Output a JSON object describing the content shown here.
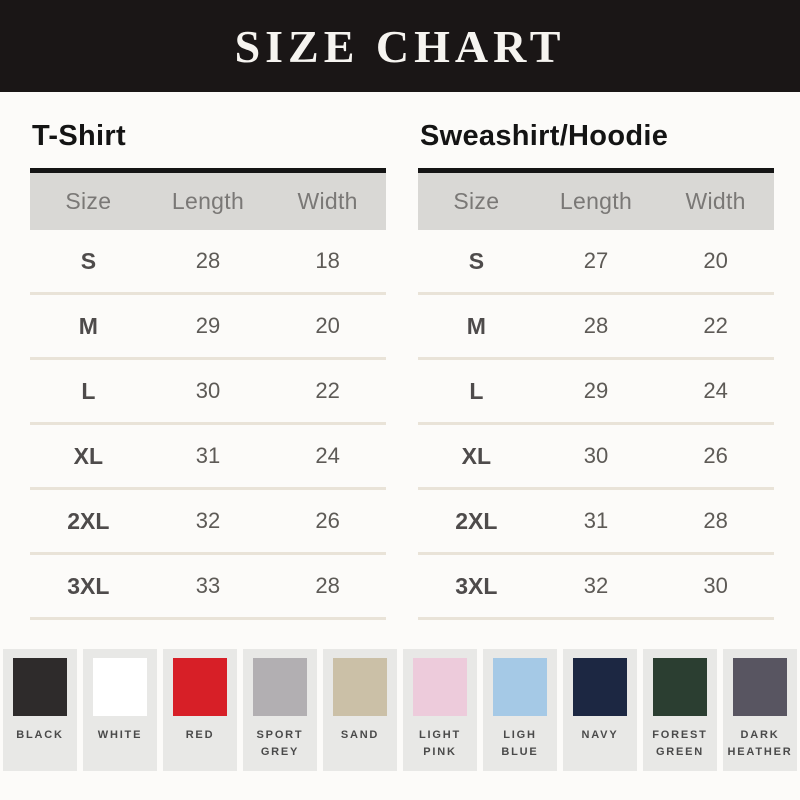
{
  "header": {
    "title": "SIZE CHART"
  },
  "tables": [
    {
      "title": "T-Shirt",
      "columns": [
        "Size",
        "Length",
        "Width"
      ],
      "rows": [
        [
          "S",
          "28",
          "18"
        ],
        [
          "M",
          "29",
          "20"
        ],
        [
          "L",
          "30",
          "22"
        ],
        [
          "XL",
          "31",
          "24"
        ],
        [
          "2XL",
          "32",
          "26"
        ],
        [
          "3XL",
          "33",
          "28"
        ]
      ]
    },
    {
      "title": "Sweashirt/Hoodie",
      "columns": [
        "Size",
        "Length",
        "Width"
      ],
      "rows": [
        [
          "S",
          "27",
          "20"
        ],
        [
          "M",
          "28",
          "22"
        ],
        [
          "L",
          "29",
          "24"
        ],
        [
          "XL",
          "30",
          "26"
        ],
        [
          "2XL",
          "31",
          "28"
        ],
        [
          "3XL",
          "32",
          "30"
        ]
      ]
    }
  ],
  "swatches": [
    {
      "label": "BLACK",
      "color": "#2e2b2b"
    },
    {
      "label": "WHITE",
      "color": "#ffffff"
    },
    {
      "label": "RED",
      "color": "#d71f27"
    },
    {
      "label": "SPORT GREY",
      "color": "#b2afb2"
    },
    {
      "label": "SAND",
      "color": "#cbc0a7"
    },
    {
      "label": "LIGHT PINK",
      "color": "#edcbdb"
    },
    {
      "label": "LIGH BLUE",
      "color": "#a5c9e6"
    },
    {
      "label": "NAVY",
      "color": "#1c2742"
    },
    {
      "label": "FOREST GREEN",
      "color": "#2b3e31"
    },
    {
      "label": "DARK HEATHER",
      "color": "#585561"
    }
  ],
  "colors": {
    "banner_bg": "#1a1616",
    "banner_text": "#f6f4f0",
    "table_top_border": "#151515",
    "table_header_bg": "#d9d8d5",
    "table_header_text": "#7a7876",
    "row_separator": "#e9e3d8",
    "size_text": "#4e4b4b",
    "value_text": "#5d5a56",
    "swatch_card_bg": "#e8e8e6",
    "swatch_label_text": "#4a4a4a",
    "page_bg": "#fcfbf9"
  },
  "chart_data": [
    {
      "type": "table",
      "title": "T-Shirt",
      "columns": [
        "Size",
        "Length",
        "Width"
      ],
      "rows": [
        [
          "S",
          28,
          18
        ],
        [
          "M",
          29,
          20
        ],
        [
          "L",
          30,
          22
        ],
        [
          "XL",
          31,
          24
        ],
        [
          "2XL",
          32,
          26
        ],
        [
          "3XL",
          33,
          28
        ]
      ]
    },
    {
      "type": "table",
      "title": "Sweashirt/Hoodie",
      "columns": [
        "Size",
        "Length",
        "Width"
      ],
      "rows": [
        [
          "S",
          27,
          20
        ],
        [
          "M",
          28,
          22
        ],
        [
          "L",
          29,
          24
        ],
        [
          "XL",
          30,
          26
        ],
        [
          "2XL",
          31,
          28
        ],
        [
          "3XL",
          32,
          30
        ]
      ]
    }
  ]
}
